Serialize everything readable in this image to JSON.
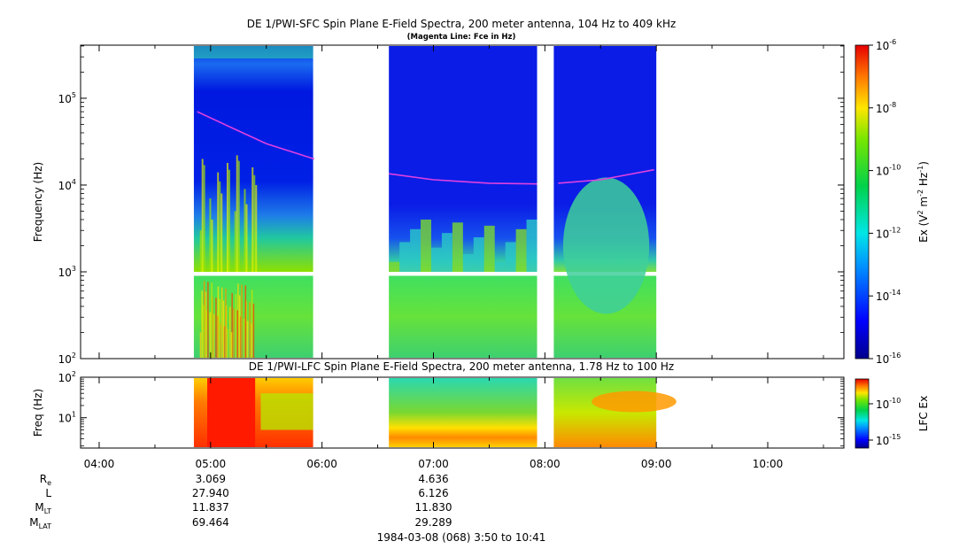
{
  "chart_data": [
    {
      "type": "heatmap",
      "title": "DE 1/PWI-SFC  Spin Plane E-Field Spectra, 200 meter antenna, 104 Hz to 409 kHz",
      "subtitle": "(Magenta Line: Fce in Hz)",
      "ylabel": "Frequency (Hz)",
      "yscale": "log",
      "ylim": [
        100,
        409000
      ],
      "y_ticks": [
        {
          "value": 100,
          "base": "10",
          "exp": "2"
        },
        {
          "value": 1000,
          "base": "10",
          "exp": "3"
        },
        {
          "value": 10000,
          "base": "10",
          "exp": "4"
        },
        {
          "value": 100000,
          "base": "10",
          "exp": "5"
        }
      ],
      "colorbar": {
        "label_main": "Ex (V",
        "label_sup1": "2",
        "label_mid": " m",
        "label_sup2": "-2",
        "label_mid2": " Hz",
        "label_sup3": "-1",
        "label_end": ")",
        "scale": "log",
        "range": [
          1e-16,
          1e-06
        ],
        "ticks": [
          {
            "value": 1e-06,
            "base": "10",
            "exp": "-6"
          },
          {
            "value": 1e-08,
            "base": "10",
            "exp": "-8"
          },
          {
            "value": 1e-10,
            "base": "10",
            "exp": "-10"
          },
          {
            "value": 1e-12,
            "base": "10",
            "exp": "-12"
          },
          {
            "value": 1e-14,
            "base": "10",
            "exp": "-14"
          },
          {
            "value": 1e-16,
            "base": "10",
            "exp": "-16"
          }
        ]
      },
      "data_segments_hours": [
        [
          4.85,
          5.92
        ],
        [
          6.6,
          7.93
        ],
        [
          8.08,
          9.0
        ]
      ],
      "fce_line": {
        "name": "Fce",
        "color": "#e040e0",
        "segments": [
          {
            "points": [
              [
                4.88,
                70000
              ],
              [
                5.2,
                45000
              ],
              [
                5.5,
                30000
              ],
              [
                5.93,
                20000
              ]
            ]
          },
          {
            "points": [
              [
                6.6,
                13500
              ],
              [
                7.0,
                11500
              ],
              [
                7.5,
                10500
              ],
              [
                7.93,
                10300
              ]
            ]
          },
          {
            "points": [
              [
                8.12,
                10500
              ],
              [
                8.5,
                11500
              ],
              [
                8.98,
                15000
              ]
            ]
          }
        ]
      }
    },
    {
      "type": "heatmap",
      "title": "DE 1/PWI-LFC  Spin Plane E-Field Spectra, 200 meter antenna, 1.78 Hz to 100 Hz",
      "ylabel": "Freq (Hz)",
      "yscale": "log",
      "ylim": [
        1.78,
        100
      ],
      "y_ticks": [
        {
          "value": 10,
          "base": "10",
          "exp": "1"
        },
        {
          "value": 100,
          "base": "10",
          "exp": "2"
        }
      ],
      "colorbar": {
        "label": "LFC Ex",
        "scale": "log",
        "ticks": [
          {
            "value": 1e-10,
            "base": "10",
            "exp": "-10"
          },
          {
            "value": 1e-15,
            "base": "10",
            "exp": "-15"
          }
        ]
      },
      "data_segments_hours": [
        [
          4.85,
          5.92
        ],
        [
          6.6,
          7.93
        ],
        [
          8.08,
          9.0
        ]
      ]
    }
  ],
  "x_axis": {
    "range_hours": [
      3.8333,
      10.6833
    ],
    "ticks": [
      {
        "hour": 4,
        "label": "04:00"
      },
      {
        "hour": 5,
        "label": "05:00"
      },
      {
        "hour": 6,
        "label": "06:00"
      },
      {
        "hour": 7,
        "label": "07:00"
      },
      {
        "hour": 8,
        "label": "08:00"
      },
      {
        "hour": 9,
        "label": "09:00"
      },
      {
        "hour": 10,
        "label": "10:00"
      }
    ]
  },
  "ephemeris": {
    "rows": [
      {
        "label_main": "R",
        "label_sub": "e",
        "values": [
          "3.069",
          "4.636"
        ]
      },
      {
        "label_main": "L",
        "label_sub": "",
        "values": [
          "27.940",
          "6.126"
        ]
      },
      {
        "label_main": "M",
        "label_sub": "LT",
        "values": [
          "11.837",
          "11.830"
        ]
      },
      {
        "label_main": "M",
        "label_sub": "LAT",
        "values": [
          "69.464",
          "29.289"
        ]
      }
    ],
    "value_hours": [
      5,
      7
    ]
  },
  "footer": "1984-03-08 (068) 3:50 to 10:41"
}
